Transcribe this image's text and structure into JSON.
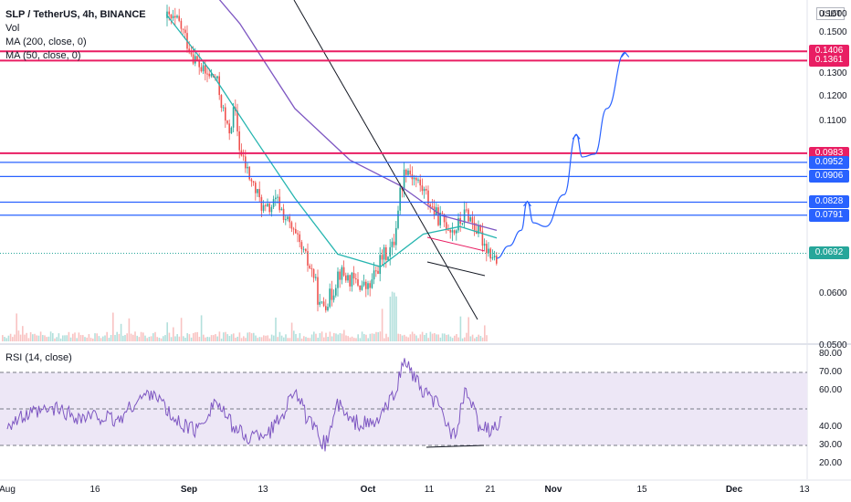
{
  "legend": {
    "symbol": "SLP / TetherUS, 4h, BINANCE",
    "vol": "Vol",
    "ma200": "MA (200, close, 0)",
    "ma50": "MA (50, close, 0)"
  },
  "rsi_label": "RSI (14, close)",
  "currency": "USDT",
  "colors": {
    "up": "#26a69a",
    "down": "#ef5350",
    "ma50": "#26b5b0",
    "ma200": "#7e57c2",
    "red_line": "#e91e63",
    "blue_line": "#2962ff",
    "rsi": "#7e57c2",
    "rsi_band": "#ede7f6",
    "last_price": "#26a69a"
  },
  "chart_data": [
    {
      "type": "candlestick",
      "title": "SLP / TetherUS, 4h, BINANCE",
      "x_ticks": [
        "Aug",
        "16",
        "Sep",
        "13",
        "Oct",
        "11",
        "21",
        "Nov",
        "15",
        "Dec",
        "13"
      ],
      "y_ticks": [
        0.05,
        0.06,
        0.0692,
        0.0791,
        0.0828,
        0.0906,
        0.0952,
        0.0983,
        0.11,
        0.12,
        0.13,
        0.1361,
        0.1406,
        0.15,
        0.16
      ],
      "ylim": [
        0.046,
        0.162
      ],
      "scale": "log",
      "price_levels": [
        {
          "value": 0.1406,
          "label": "0.1406",
          "color": "red"
        },
        {
          "value": 0.1361,
          "label": "0.1361",
          "color": "red"
        },
        {
          "value": 0.0983,
          "label": "0.0983",
          "color": "red"
        },
        {
          "value": 0.0952,
          "label": "0.0952",
          "color": "blue"
        },
        {
          "value": 0.0906,
          "label": "0.0906",
          "color": "blue"
        },
        {
          "value": 0.0828,
          "label": "0.0828",
          "color": "blue"
        },
        {
          "value": 0.0791,
          "label": "0.0791",
          "color": "blue"
        }
      ],
      "last_price": {
        "value": 0.0692,
        "label": "0.0692"
      },
      "price_path": [
        [
          "Aug 27",
          0.158
        ],
        [
          "Aug 29",
          0.155
        ],
        [
          "Aug 31",
          0.14
        ],
        [
          "Sep 2",
          0.13
        ],
        [
          "Sep 4",
          0.128
        ],
        [
          "Sep 6",
          0.105
        ],
        [
          "Sep 7",
          0.115
        ],
        [
          "Sep 8",
          0.098
        ],
        [
          "Sep 10",
          0.088
        ],
        [
          "Sep 12",
          0.08
        ],
        [
          "Sep 14",
          0.083
        ],
        [
          "Sep 17",
          0.073
        ],
        [
          "Sep 20",
          0.064
        ],
        [
          "Sep 21",
          0.057
        ],
        [
          "Sep 23",
          0.06
        ],
        [
          "Sep 24",
          0.065
        ],
        [
          "Sep 26",
          0.063
        ],
        [
          "Sep 29",
          0.061
        ],
        [
          "Oct 1",
          0.068
        ],
        [
          "Oct 3",
          0.071
        ],
        [
          "Oct 4",
          0.085
        ],
        [
          "Oct 5",
          0.094
        ],
        [
          "Oct 8",
          0.086
        ],
        [
          "Oct 10",
          0.079
        ],
        [
          "Oct 13",
          0.075
        ],
        [
          "Oct 15",
          0.08
        ],
        [
          "Oct 17",
          0.074
        ],
        [
          "Oct 19",
          0.069
        ],
        [
          "Oct 20",
          0.067
        ]
      ],
      "ma50": [
        [
          "Aug 27",
          0.16
        ],
        [
          "Sep 3",
          0.132
        ],
        [
          "Sep 10",
          0.105
        ],
        [
          "Sep 17",
          0.084
        ],
        [
          "Sep 24",
          0.069
        ],
        [
          "Oct 1",
          0.066
        ],
        [
          "Oct 8",
          0.074
        ],
        [
          "Oct 14",
          0.076
        ],
        [
          "Oct 20",
          0.073
        ]
      ],
      "ma200": [
        [
          "Aug 27",
          0.21
        ],
        [
          "Sep 8",
          0.155
        ],
        [
          "Sep 17",
          0.115
        ],
        [
          "Sep 26",
          0.096
        ],
        [
          "Oct 4",
          0.088
        ],
        [
          "Oct 11",
          0.079
        ],
        [
          "Oct 20",
          0.075
        ]
      ],
      "projection": [
        [
          "Oct 20",
          0.068
        ],
        [
          "Oct 22",
          0.071
        ],
        [
          "Oct 24",
          0.075
        ],
        [
          "Oct 25",
          0.083
        ],
        [
          "Oct 26",
          0.077
        ],
        [
          "Oct 28",
          0.076
        ],
        [
          "Oct 31",
          0.085
        ],
        [
          "Nov 2",
          0.105
        ],
        [
          "Nov 3",
          0.097
        ],
        [
          "Nov 5",
          0.098
        ],
        [
          "Nov 7",
          0.115
        ],
        [
          "Nov 10",
          0.14
        ]
      ]
    },
    {
      "type": "line",
      "title": "RSI (14, close)",
      "y_ticks": [
        20,
        30,
        40,
        60,
        70,
        80
      ],
      "ylim": [
        15,
        82
      ],
      "band": [
        30,
        70
      ],
      "midline": 50,
      "rsi_path": [
        [
          "Aug 1",
          42
        ],
        [
          "Aug 5",
          47
        ],
        [
          "Aug 9",
          50
        ],
        [
          "Aug 13",
          45
        ],
        [
          "Aug 16",
          46
        ],
        [
          "Aug 19",
          43
        ],
        [
          "Aug 22",
          54
        ],
        [
          "Aug 25",
          60
        ],
        [
          "Aug 28",
          44
        ],
        [
          "Sep 1",
          38
        ],
        [
          "Sep 4",
          55
        ],
        [
          "Sep 6",
          44
        ],
        [
          "Sep 9",
          34
        ],
        [
          "Sep 13",
          38
        ],
        [
          "Sep 15",
          47
        ],
        [
          "Sep 17",
          62
        ],
        [
          "Sep 19",
          44
        ],
        [
          "Sep 22",
          30
        ],
        [
          "Sep 24",
          53
        ],
        [
          "Sep 26",
          43
        ],
        [
          "Sep 30",
          41
        ],
        [
          "Oct 3",
          56
        ],
        [
          "Oct 5",
          77
        ],
        [
          "Oct 8",
          58
        ],
        [
          "Oct 10",
          54
        ],
        [
          "Oct 13",
          35
        ],
        [
          "Oct 15",
          60
        ],
        [
          "Oct 17",
          42
        ],
        [
          "Oct 19",
          37
        ],
        [
          "Oct 21",
          45
        ]
      ]
    }
  ]
}
